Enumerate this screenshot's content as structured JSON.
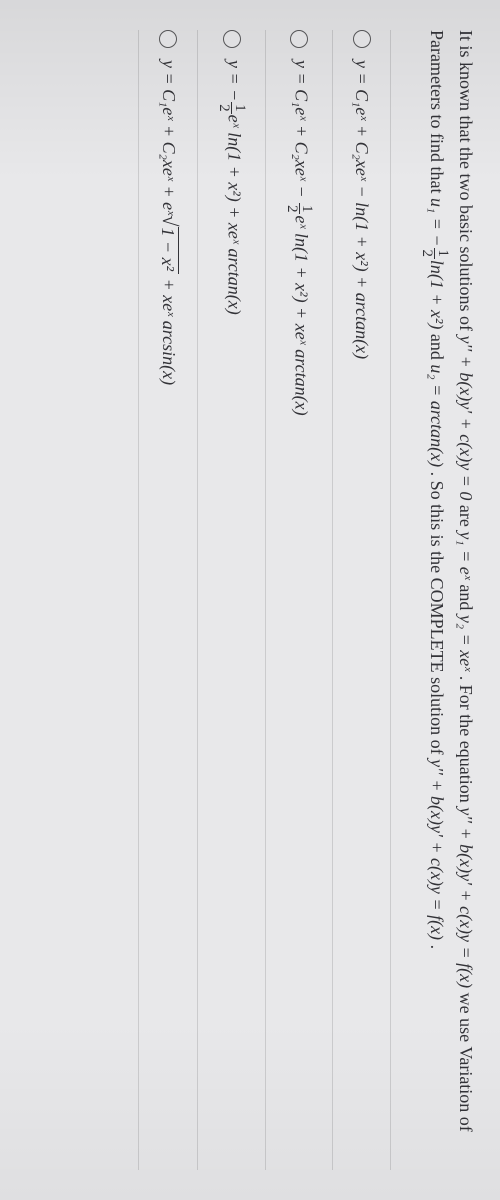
{
  "question": {
    "part1": "It is known that the two basic solutions of ",
    "eq_homog": "y'' + b(x)y' + c(x)y = 0",
    "part2": " are ",
    "y1": "y₁ = eˣ",
    "and1": " and ",
    "y2": "y₂ = xeˣ",
    "part3": " . For the equation ",
    "eq_nonhomog": "y'' + b(x)y' + c(x)y = f(x)",
    "part4": " we use Variation of Parameters to find that ",
    "u1_lhs": "u₁ = ",
    "u1_frac_n": "1",
    "u1_frac_d": "2",
    "u1_rhs": "ln(1 + x²)",
    "and2": " and ",
    "u2": "u₂ = arctan(x)",
    "part5": " . So this is the COMPLETE solution of ",
    "eq_repeat": "y'' + b(x)y' + c(x)y = f(x)",
    "period": "."
  },
  "options": {
    "a_pre": "y = C₁eˣ + C₂xeˣ − ln(1 + x²) + arctan(x)",
    "b_pre": "y = C₁eˣ + C₂xeˣ − ",
    "b_frac_n": "1",
    "b_frac_d": "2",
    "b_post": "eˣ ln(1 + x²) + xeˣ arctan(x)",
    "c_pre": "y = −",
    "c_frac_n": "1",
    "c_frac_d": "2",
    "c_post": "eˣ ln(1 + x²) + xeˣ arctan(x)",
    "d_pre": "y = C₁eˣ + C₂xeˣ + eˣ",
    "d_rad": "1 − x²",
    "d_post": " + xeˣ arcsin(x)"
  }
}
